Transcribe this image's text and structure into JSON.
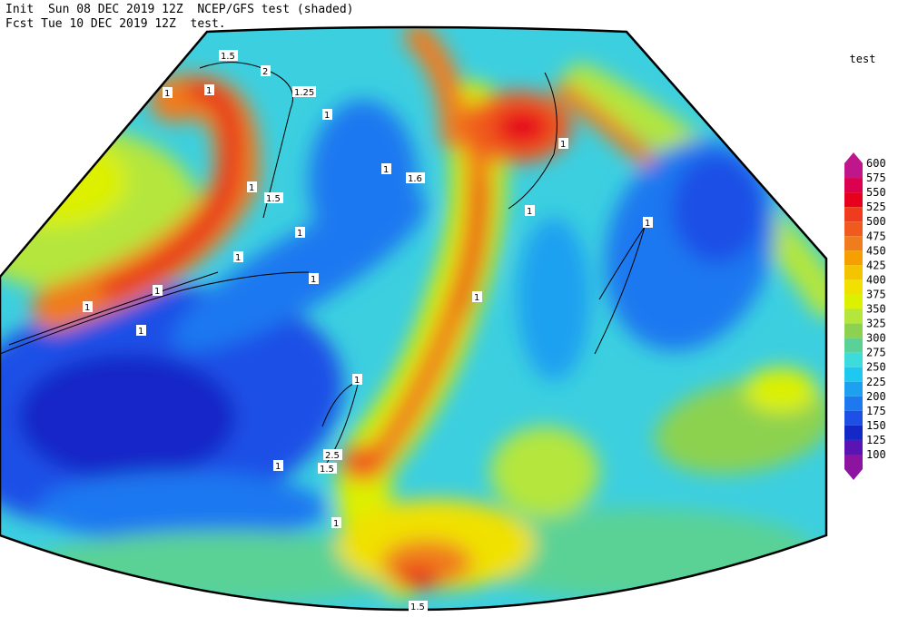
{
  "header": {
    "line1": "Init  Sun 08 DEC 2019 12Z  NCEP/GFS test (shaded)",
    "line2": "Fcst Tue 10 DEC 2019 12Z  test."
  },
  "legend": {
    "title": "test",
    "levels": [
      600,
      575,
      550,
      525,
      500,
      475,
      450,
      425,
      400,
      375,
      350,
      325,
      300,
      275,
      250,
      225,
      200,
      175,
      150,
      125,
      100
    ],
    "colors": [
      "#c0168c",
      "#dc0050",
      "#e6001e",
      "#f03c1e",
      "#f05a1e",
      "#f07c1e",
      "#f5a000",
      "#f5c400",
      "#f0e100",
      "#dcf000",
      "#b4e63c",
      "#8cd250",
      "#5ad296",
      "#3cdcdc",
      "#1ec8f0",
      "#1ea0f0",
      "#1e78f0",
      "#1e50e6",
      "#1428c8",
      "#5a14b4",
      "#8c14a0"
    ]
  },
  "contour_labels": [
    "1.5",
    "2",
    "1",
    "1.25",
    "1",
    "1",
    "1.5",
    "1",
    "1",
    "1",
    "1",
    "1.6",
    "1",
    "1",
    "1",
    "1",
    "1",
    "1",
    "1",
    "1",
    "2.5",
    "1.5",
    "1",
    "1",
    "1",
    "1.5"
  ]
}
